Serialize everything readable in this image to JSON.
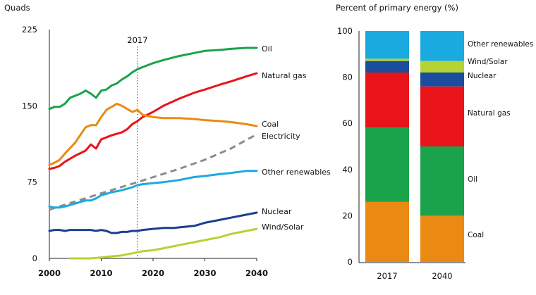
{
  "chart_data": [
    {
      "type": "line",
      "ylabel": "Quads",
      "xlim": [
        2000,
        2040
      ],
      "ylim": [
        0,
        225
      ],
      "x_ticks": [
        "2000",
        "2010",
        "2020",
        "2030",
        "2040"
      ],
      "y_ticks": [
        "0",
        "75",
        "150",
        "225"
      ],
      "marker_year": 2017,
      "marker_label": "2017",
      "series": [
        {
          "name": "Oil",
          "color": "#1aa34a",
          "style": "solid",
          "x": [
            2000,
            2001,
            2002,
            2003,
            2004,
            2006,
            2007,
            2008,
            2009,
            2010,
            2011,
            2012,
            2013,
            2014,
            2015,
            2016,
            2017,
            2018,
            2020,
            2022,
            2025,
            2028,
            2030,
            2033,
            2035,
            2038,
            2040
          ],
          "y": [
            147,
            149,
            149,
            152,
            158,
            162,
            165,
            162,
            158,
            165,
            166,
            170,
            172,
            176,
            179,
            183,
            186,
            188,
            192,
            195,
            199,
            202,
            204,
            205,
            206,
            207,
            207
          ]
        },
        {
          "name": "Natural gas",
          "color": "#e8141a",
          "style": "solid",
          "x": [
            2000,
            2001,
            2002,
            2003,
            2005,
            2007,
            2008,
            2009,
            2010,
            2012,
            2014,
            2015,
            2016,
            2017,
            2018,
            2020,
            2022,
            2025,
            2028,
            2030,
            2033,
            2035,
            2038,
            2040
          ],
          "y": [
            88,
            89,
            91,
            95,
            101,
            106,
            112,
            108,
            117,
            121,
            124,
            127,
            132,
            135,
            139,
            144,
            150,
            157,
            163,
            166,
            171,
            174,
            179,
            182
          ]
        },
        {
          "name": "Coal",
          "color": "#ea8a12",
          "style": "solid",
          "x": [
            2000,
            2001,
            2002,
            2003,
            2005,
            2007,
            2008,
            2009,
            2010,
            2011,
            2012,
            2013,
            2014,
            2015,
            2016,
            2017,
            2018,
            2020,
            2022,
            2025,
            2028,
            2030,
            2033,
            2035,
            2038,
            2040
          ],
          "y": [
            92,
            94,
            97,
            103,
            114,
            129,
            131,
            131,
            139,
            146,
            149,
            152,
            150,
            147,
            144,
            146,
            141,
            139,
            138,
            138,
            137,
            136,
            135,
            134,
            132,
            130
          ]
        },
        {
          "name": "Electricity",
          "color": "#8c8c8c",
          "style": "dashed",
          "x": [
            2000,
            2010,
            2017,
            2025,
            2030,
            2035,
            2040
          ],
          "y": [
            48,
            64,
            75,
            88,
            97,
            108,
            122
          ]
        },
        {
          "name": "Other renewables",
          "color": "#1aaae0",
          "style": "solid",
          "x": [
            2000,
            2001,
            2002,
            2003,
            2005,
            2007,
            2008,
            2009,
            2010,
            2012,
            2014,
            2016,
            2017,
            2018,
            2020,
            2022,
            2025,
            2028,
            2030,
            2033,
            2035,
            2038,
            2040
          ],
          "y": [
            51,
            50,
            50,
            51,
            54,
            57,
            57,
            59,
            62,
            65,
            67,
            70,
            72,
            73,
            74,
            75,
            77,
            80,
            81,
            83,
            84,
            86,
            86
          ]
        },
        {
          "name": "Nuclear",
          "color": "#1a3f8f",
          "style": "solid",
          "x": [
            2000,
            2001,
            2002,
            2003,
            2004,
            2005,
            2006,
            2007,
            2008,
            2009,
            2010,
            2011,
            2012,
            2013,
            2014,
            2015,
            2016,
            2017,
            2018,
            2020,
            2022,
            2024,
            2026,
            2028,
            2030,
            2033,
            2035,
            2038,
            2040
          ],
          "y": [
            27,
            28,
            28,
            27,
            28,
            28,
            28,
            28,
            28,
            27,
            28,
            27,
            25,
            25,
            26,
            26,
            27,
            27,
            28,
            29,
            30,
            30,
            31,
            32,
            35,
            38,
            40,
            43,
            45
          ]
        },
        {
          "name": "Wind/Solar",
          "color": "#b5d334",
          "style": "solid",
          "x": [
            2004,
            2006,
            2008,
            2010,
            2012,
            2014,
            2016,
            2017,
            2018,
            2020,
            2022,
            2025,
            2028,
            2030,
            2033,
            2035,
            2038,
            2040
          ],
          "y": [
            0,
            0,
            0,
            1,
            2,
            3,
            5,
            6,
            7,
            8,
            10,
            13,
            16,
            18,
            21,
            24,
            27,
            29
          ]
        }
      ]
    },
    {
      "type": "bar",
      "stacked": true,
      "title": "Percent of primary energy (%)",
      "categories": [
        "2017",
        "2040"
      ],
      "ylim": [
        0,
        100
      ],
      "y_ticks": [
        "0",
        "20",
        "40",
        "60",
        "80",
        "100"
      ],
      "series": [
        {
          "name": "Coal",
          "color": "#ea8a12",
          "values": [
            26,
            20
          ]
        },
        {
          "name": "Oil",
          "color": "#1aa34a",
          "values": [
            32,
            30
          ]
        },
        {
          "name": "Natural gas",
          "color": "#e8141a",
          "values": [
            24,
            26
          ]
        },
        {
          "name": "Nuclear",
          "color": "#1a4d9e",
          "values": [
            5,
            6
          ]
        },
        {
          "name": "Wind/Solar",
          "color": "#b5d334",
          "values": [
            1,
            5
          ]
        },
        {
          "name": "Other renewables",
          "color": "#1aaae0",
          "values": [
            12,
            13
          ]
        }
      ]
    }
  ]
}
